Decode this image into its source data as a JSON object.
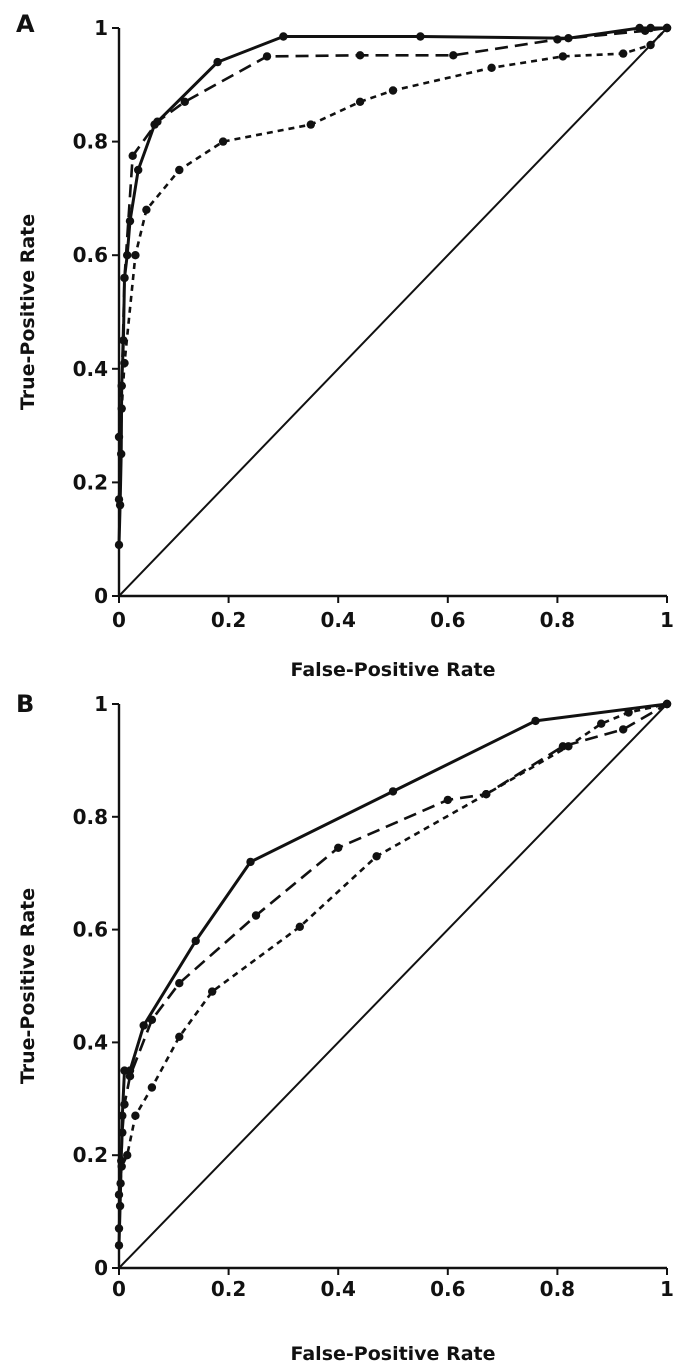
{
  "chart_data": [
    {
      "type": "line",
      "panel_label": "A",
      "xlabel": "False-Positive Rate",
      "ylabel": "True-Positive Rate",
      "xlim": [
        0,
        1
      ],
      "ylim": [
        0,
        1
      ],
      "x_ticks": [
        "0",
        "0.2",
        "0.4",
        "0.6",
        "0.8",
        "1"
      ],
      "y_ticks": [
        "0",
        "0.2",
        "0.4",
        "0.6",
        "0.8",
        "1"
      ],
      "grid": false,
      "reference_line": [
        [
          0,
          0
        ],
        [
          1,
          1
        ]
      ],
      "series": [
        {
          "style": "solid",
          "points": [
            [
              0,
              0.09
            ],
            [
              0.002,
              0.16
            ],
            [
              0.004,
              0.25
            ],
            [
              0.005,
              0.37
            ],
            [
              0.008,
              0.45
            ],
            [
              0.01,
              0.56
            ],
            [
              0.015,
              0.6
            ],
            [
              0.02,
              0.66
            ],
            [
              0.035,
              0.75
            ],
            [
              0.065,
              0.83
            ],
            [
              0.18,
              0.94
            ],
            [
              0.3,
              0.985
            ],
            [
              0.55,
              0.985
            ],
            [
              0.82,
              0.982
            ],
            [
              0.95,
              1.0
            ],
            [
              0.97,
              1.0
            ],
            [
              1,
              1
            ]
          ]
        },
        {
          "style": "dashed",
          "points": [
            [
              0,
              0.28
            ],
            [
              0.005,
              0.37
            ],
            [
              0.01,
              0.56
            ],
            [
              0.025,
              0.775
            ],
            [
              0.07,
              0.835
            ],
            [
              0.12,
              0.87
            ],
            [
              0.27,
              0.95
            ],
            [
              0.44,
              0.952
            ],
            [
              0.61,
              0.952
            ],
            [
              0.8,
              0.98
            ],
            [
              0.96,
              0.995
            ],
            [
              1,
              1
            ]
          ]
        },
        {
          "style": "dotted",
          "points": [
            [
              0,
              0.17
            ],
            [
              0.005,
              0.33
            ],
            [
              0.01,
              0.41
            ],
            [
              0.03,
              0.6
            ],
            [
              0.05,
              0.68
            ],
            [
              0.11,
              0.75
            ],
            [
              0.19,
              0.8
            ],
            [
              0.35,
              0.83
            ],
            [
              0.44,
              0.87
            ],
            [
              0.5,
              0.89
            ],
            [
              0.68,
              0.93
            ],
            [
              0.81,
              0.95
            ],
            [
              0.92,
              0.955
            ],
            [
              0.97,
              0.97
            ],
            [
              1,
              1
            ]
          ]
        }
      ]
    },
    {
      "type": "line",
      "panel_label": "B",
      "xlabel": "False-Positive Rate",
      "ylabel": "True-Positive Rate",
      "xlim": [
        0,
        1
      ],
      "ylim": [
        0,
        1
      ],
      "x_ticks": [
        "0",
        "0.2",
        "0.4",
        "0.6",
        "0.8",
        "1"
      ],
      "y_ticks": [
        "0",
        "0.2",
        "0.4",
        "0.6",
        "0.8",
        "1"
      ],
      "grid": false,
      "reference_line": [
        [
          0,
          0
        ],
        [
          1,
          1
        ]
      ],
      "series": [
        {
          "style": "solid",
          "points": [
            [
              0,
              0.04
            ],
            [
              0.002,
              0.11
            ],
            [
              0.004,
              0.19
            ],
            [
              0.006,
              0.27
            ],
            [
              0.01,
              0.35
            ],
            [
              0.02,
              0.35
            ],
            [
              0.045,
              0.43
            ],
            [
              0.14,
              0.58
            ],
            [
              0.24,
              0.72
            ],
            [
              0.5,
              0.845
            ],
            [
              0.76,
              0.97
            ],
            [
              1,
              1
            ]
          ]
        },
        {
          "style": "dashed",
          "points": [
            [
              0,
              0.07
            ],
            [
              0.003,
              0.15
            ],
            [
              0.006,
              0.24
            ],
            [
              0.01,
              0.29
            ],
            [
              0.02,
              0.34
            ],
            [
              0.06,
              0.44
            ],
            [
              0.11,
              0.505
            ],
            [
              0.25,
              0.625
            ],
            [
              0.4,
              0.745
            ],
            [
              0.6,
              0.83
            ],
            [
              0.67,
              0.84
            ],
            [
              0.81,
              0.925
            ],
            [
              0.92,
              0.955
            ],
            [
              1,
              1
            ]
          ]
        },
        {
          "style": "dotted",
          "points": [
            [
              0,
              0.13
            ],
            [
              0.005,
              0.18
            ],
            [
              0.015,
              0.2
            ],
            [
              0.03,
              0.27
            ],
            [
              0.06,
              0.32
            ],
            [
              0.11,
              0.41
            ],
            [
              0.17,
              0.49
            ],
            [
              0.33,
              0.605
            ],
            [
              0.47,
              0.73
            ],
            [
              0.67,
              0.84
            ],
            [
              0.82,
              0.925
            ],
            [
              0.88,
              0.965
            ],
            [
              0.93,
              0.985
            ],
            [
              1,
              1
            ]
          ]
        }
      ]
    }
  ]
}
